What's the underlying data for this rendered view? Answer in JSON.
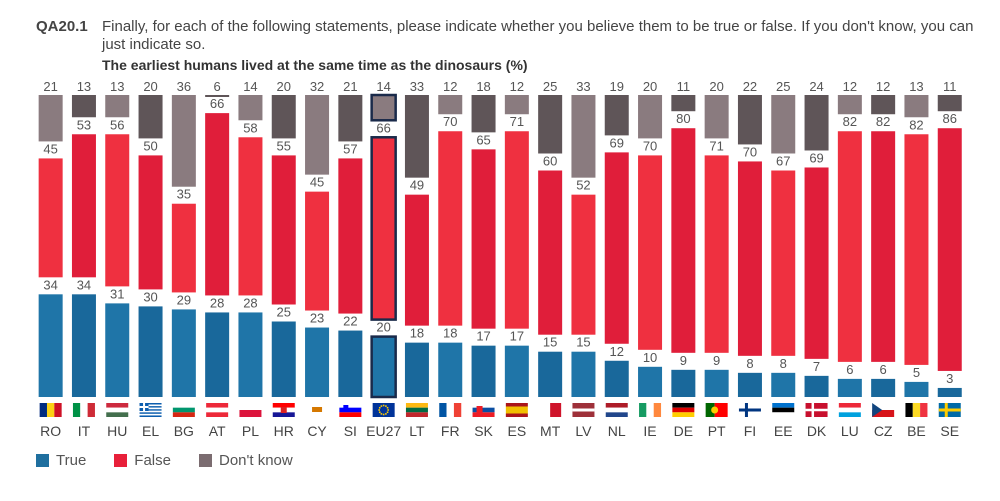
{
  "question": {
    "code": "QA20.1",
    "text": "Finally, for each of the following statements, please indicate whether you believe them to be true or false. If you don't know, you can just indicate so.",
    "subtitle": "The earliest humans lived at the same time as the dinosaurs  (%)"
  },
  "legend": [
    {
      "label": "True",
      "color": "#1f6f9f"
    },
    {
      "label": "False",
      "color": "#e8203a"
    },
    {
      "label": "Don't know",
      "color": "#7b6c70"
    }
  ],
  "chart_data": {
    "type": "bar",
    "stacked": true,
    "categories": [
      "RO",
      "IT",
      "HU",
      "EL",
      "BG",
      "AT",
      "PL",
      "HR",
      "CY",
      "SI",
      "EU27",
      "LT",
      "FR",
      "SK",
      "ES",
      "MT",
      "LV",
      "NL",
      "IE",
      "DE",
      "PT",
      "FI",
      "EE",
      "DK",
      "LU",
      "CZ",
      "BE",
      "SE"
    ],
    "highlight_category": "EU27",
    "series": [
      {
        "name": "True",
        "values": [
          34,
          34,
          31,
          30,
          29,
          28,
          28,
          25,
          23,
          22,
          20,
          18,
          18,
          17,
          17,
          15,
          15,
          12,
          10,
          9,
          9,
          8,
          8,
          7,
          6,
          6,
          5,
          3
        ]
      },
      {
        "name": "False",
        "values": [
          45,
          53,
          56,
          50,
          35,
          66,
          58,
          55,
          45,
          57,
          66,
          49,
          70,
          65,
          71,
          60,
          52,
          69,
          70,
          80,
          71,
          70,
          67,
          69,
          82,
          82,
          82,
          86
        ]
      },
      {
        "name": "Don't know",
        "values": [
          21,
          13,
          13,
          20,
          36,
          6,
          14,
          20,
          32,
          21,
          14,
          33,
          12,
          18,
          12,
          25,
          33,
          19,
          20,
          11,
          20,
          22,
          25,
          24,
          12,
          12,
          13,
          11
        ]
      }
    ],
    "ylim": [
      0,
      100
    ]
  },
  "flag_icons": [
    "romania-flag-icon",
    "italy-flag-icon",
    "hungary-flag-icon",
    "greece-flag-icon",
    "bulgaria-flag-icon",
    "austria-flag-icon",
    "poland-flag-icon",
    "croatia-flag-icon",
    "cyprus-flag-icon",
    "slovenia-flag-icon",
    "eu-flag-icon",
    "lithuania-flag-icon",
    "france-flag-icon",
    "slovakia-flag-icon",
    "spain-flag-icon",
    "malta-flag-icon",
    "latvia-flag-icon",
    "netherlands-flag-icon",
    "ireland-flag-icon",
    "germany-flag-icon",
    "portugal-flag-icon",
    "finland-flag-icon",
    "estonia-flag-icon",
    "denmark-flag-icon",
    "luxembourg-flag-icon",
    "czechia-flag-icon",
    "belgium-flag-icon",
    "sweden-flag-icon"
  ]
}
